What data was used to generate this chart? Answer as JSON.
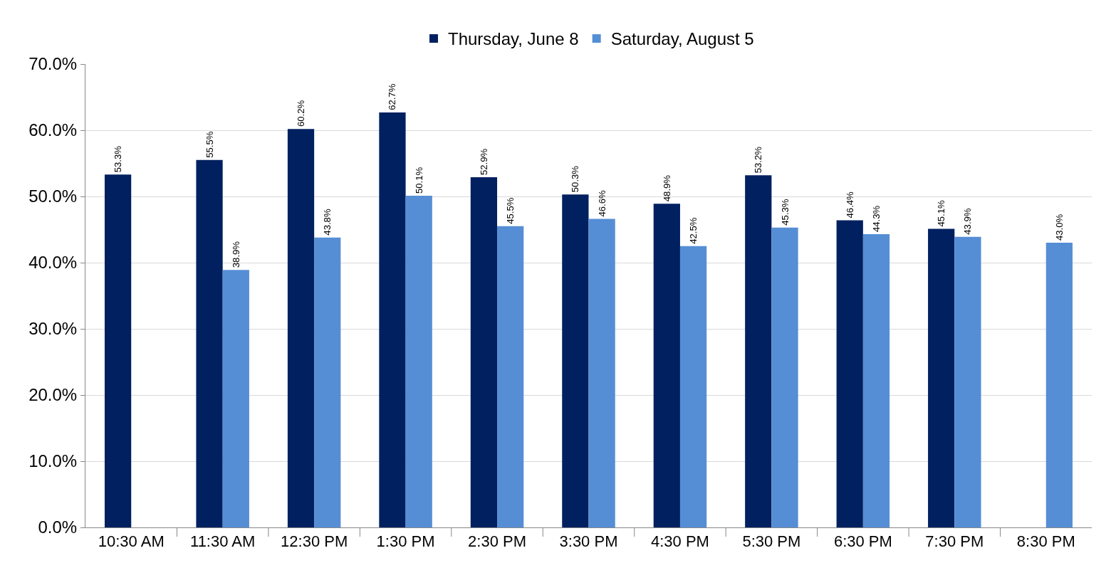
{
  "chart_data": {
    "type": "bar",
    "categories": [
      "10:30 AM",
      "11:30 AM",
      "12:30 PM",
      "1:30 PM",
      "2:30 PM",
      "3:30 PM",
      "4:30 PM",
      "5:30 PM",
      "6:30 PM",
      "7:30 PM",
      "8:30 PM"
    ],
    "series": [
      {
        "name": "Thursday, June 8",
        "color": "#002060",
        "values": [
          53.3,
          55.5,
          60.2,
          62.7,
          52.9,
          50.3,
          48.9,
          53.2,
          46.4,
          45.1,
          null
        ],
        "value_labels": [
          "53.3%",
          "55.5%",
          "60.2%",
          "62.7%",
          "52.9%",
          "50.3%",
          "48.9%",
          "53.2%",
          "46.4%",
          "45.1%",
          null
        ]
      },
      {
        "name": "Saturday, August 5",
        "color": "#558ed5",
        "values": [
          null,
          38.9,
          43.8,
          50.1,
          45.5,
          46.6,
          42.5,
          45.3,
          44.3,
          43.9,
          43.0
        ],
        "value_labels": [
          null,
          "38.9%",
          "43.8%",
          "50.1%",
          "45.5%",
          "46.6%",
          "42.5%",
          "45.3%",
          "44.3%",
          "43.9%",
          "43.0%"
        ]
      }
    ],
    "ylim": [
      0,
      70
    ],
    "yticks": [
      {
        "value": 0,
        "label": "0.0%"
      },
      {
        "value": 10,
        "label": "10.0%"
      },
      {
        "value": 20,
        "label": "20.0%"
      },
      {
        "value": 30,
        "label": "30.0%"
      },
      {
        "value": 40,
        "label": "40.0%"
      },
      {
        "value": 50,
        "label": "50.0%"
      },
      {
        "value": 60,
        "label": "60.0%"
      },
      {
        "value": 70,
        "label": "70.0%"
      }
    ],
    "grid": "y",
    "legend": "top"
  }
}
